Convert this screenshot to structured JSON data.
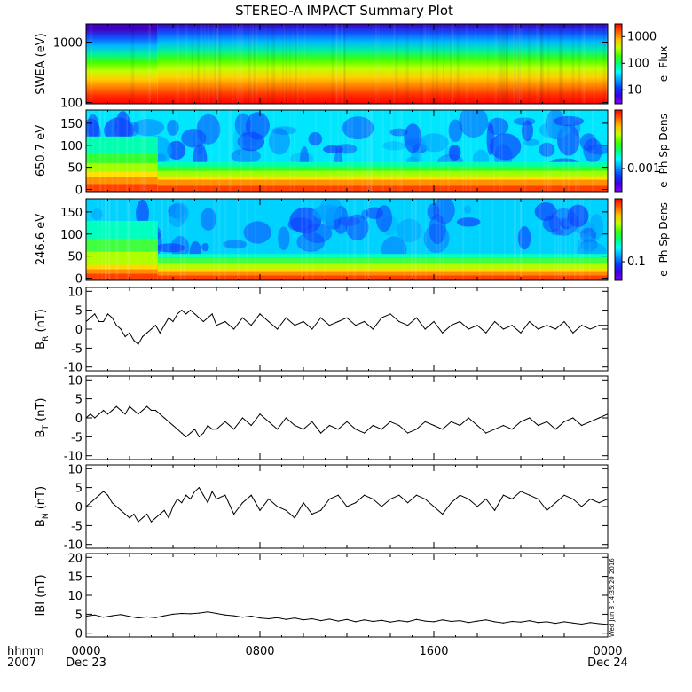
{
  "title": "STEREO-A IMPACT Summary Plot",
  "stamp": "Wed Jun  8 14:35:20 2016",
  "time_axis": {
    "row1_label": "hhmm",
    "row2_label": "2007",
    "ticks": [
      {
        "hours": 0,
        "label": "0000",
        "sublabel": "Dec 23"
      },
      {
        "hours": 8,
        "label": "0800",
        "sublabel": ""
      },
      {
        "hours": 16,
        "label": "1600",
        "sublabel": ""
      },
      {
        "hours": 24,
        "label": "0000",
        "sublabel": "Dec 24"
      }
    ],
    "range_hours": [
      0,
      24
    ]
  },
  "chart_data": [
    {
      "type": "heatmap",
      "ylabel": "SWEA (eV)",
      "yscale": "log",
      "ylim": [
        95,
        2000
      ],
      "yticks": [
        {
          "value": 100,
          "label": "100"
        },
        {
          "value": 1000,
          "label": "1000"
        }
      ],
      "colorbar": {
        "label": "e- Flux",
        "scale": "log",
        "range": [
          3,
          3000
        ],
        "ticks": [
          {
            "value": 10,
            "label": "10"
          },
          {
            "value": 100,
            "label": "100"
          },
          {
            "value": 1000,
            "label": "1000"
          }
        ]
      },
      "gradient_top_to_bottom": [
        "#4000c0",
        "#1050ff",
        "#00b8ff",
        "#00f0a0",
        "#40ff00",
        "#c0ff00",
        "#ffd000",
        "#ff8000",
        "#ff3000",
        "#ff0000"
      ],
      "change_hours": 3.3
    },
    {
      "type": "heatmap",
      "ylabel": "650.7 eV",
      "ylim": [
        -5,
        180
      ],
      "yticks": [
        {
          "value": 0,
          "label": "0"
        },
        {
          "value": 50,
          "label": "50"
        },
        {
          "value": 100,
          "label": "100"
        },
        {
          "value": 150,
          "label": "150"
        }
      ],
      "colorbar": {
        "label": "e- Ph Sp Dens",
        "scale": "log",
        "ticks": [
          {
            "value": 0.001,
            "label": "0.001"
          }
        ]
      },
      "base_color": "#00e6ff",
      "band_colors": [
        "#ff4000",
        "#ff9000",
        "#ffe000",
        "#a0ff00",
        "#30ff30",
        "#00ffb0",
        "#00e6ff"
      ],
      "band_tops": [
        8,
        22,
        30,
        42,
        52,
        62,
        180
      ],
      "early_band_tops": [
        12,
        28,
        40,
        60,
        80,
        120,
        180
      ],
      "change_hours": 3.3
    },
    {
      "type": "heatmap",
      "ylabel": "246.6 eV",
      "ylim": [
        -5,
        180
      ],
      "yticks": [
        {
          "value": 0,
          "label": "0"
        },
        {
          "value": 50,
          "label": "50"
        },
        {
          "value": 100,
          "label": "100"
        },
        {
          "value": 150,
          "label": "150"
        }
      ],
      "colorbar": {
        "label": "e- Ph Sp Dens",
        "scale": "log",
        "ticks": [
          {
            "value": 0.1,
            "label": "0.1"
          }
        ]
      },
      "base_color": "#00d2ff",
      "band_colors": [
        "#ff4000",
        "#ff8c00",
        "#ffd800",
        "#b0ff00",
        "#40ff40",
        "#00ffc0",
        "#00d2ff"
      ],
      "band_tops": [
        6,
        14,
        22,
        35,
        45,
        55,
        180
      ],
      "early_band_tops": [
        10,
        20,
        30,
        60,
        90,
        130,
        180
      ],
      "change_hours": 3.3
    },
    {
      "type": "line",
      "ylabel": "BR (nT)",
      "ylabel_main": "B",
      "ylabel_sub": "R",
      "ylabel_unit": " (nT)",
      "ylim": [
        -11,
        11
      ],
      "yticks": [
        {
          "value": -10,
          "label": "-10"
        },
        {
          "value": -5,
          "label": "-5"
        },
        {
          "value": 0,
          "label": "0"
        },
        {
          "value": 5,
          "label": "5"
        },
        {
          "value": 10,
          "label": "10"
        }
      ],
      "x": [
        0,
        0.2,
        0.4,
        0.6,
        0.8,
        1.0,
        1.2,
        1.4,
        1.6,
        1.8,
        2.0,
        2.2,
        2.4,
        2.6,
        2.8,
        3.0,
        3.2,
        3.4,
        3.6,
        3.8,
        4.0,
        4.2,
        4.4,
        4.6,
        4.8,
        5.0,
        5.2,
        5.4,
        5.6,
        5.8,
        6.0,
        6.4,
        6.8,
        7.2,
        7.6,
        8.0,
        8.4,
        8.8,
        9.2,
        9.6,
        10.0,
        10.4,
        10.8,
        11.2,
        11.6,
        12.0,
        12.4,
        12.8,
        13.2,
        13.6,
        14.0,
        14.4,
        14.8,
        15.2,
        15.6,
        16.0,
        16.4,
        16.8,
        17.2,
        17.6,
        18.0,
        18.4,
        18.8,
        19.2,
        19.6,
        20.0,
        20.4,
        20.8,
        21.2,
        21.6,
        22.0,
        22.4,
        22.8,
        23.2,
        23.6,
        24.0
      ],
      "values": [
        2,
        3,
        4,
        2,
        2,
        4,
        3,
        1,
        0,
        -2,
        -1,
        -3,
        -4,
        -2,
        -1,
        0,
        1,
        -1,
        1,
        3,
        2,
        4,
        5,
        4,
        5,
        4,
        3,
        2,
        3,
        4,
        1,
        2,
        0,
        3,
        1,
        4,
        2,
        0,
        3,
        1,
        2,
        0,
        3,
        1,
        2,
        3,
        1,
        2,
        0,
        3,
        4,
        2,
        1,
        3,
        0,
        2,
        -1,
        1,
        2,
        0,
        1,
        -1,
        2,
        0,
        1,
        -1,
        2,
        0,
        1,
        0,
        2,
        -1,
        1,
        0,
        1,
        1
      ]
    },
    {
      "type": "line",
      "ylabel": "BT (nT)",
      "ylabel_main": "B",
      "ylabel_sub": "T",
      "ylabel_unit": " (nT)",
      "ylim": [
        -11,
        11
      ],
      "yticks": [
        {
          "value": -10,
          "label": "-10"
        },
        {
          "value": -5,
          "label": "-5"
        },
        {
          "value": 0,
          "label": "0"
        },
        {
          "value": 5,
          "label": "5"
        },
        {
          "value": 10,
          "label": "10"
        }
      ],
      "x": [
        0,
        0.2,
        0.4,
        0.6,
        0.8,
        1.0,
        1.2,
        1.4,
        1.6,
        1.8,
        2.0,
        2.2,
        2.4,
        2.6,
        2.8,
        3.0,
        3.2,
        3.4,
        3.6,
        3.8,
        4.0,
        4.2,
        4.4,
        4.6,
        4.8,
        5.0,
        5.2,
        5.4,
        5.6,
        5.8,
        6.0,
        6.4,
        6.8,
        7.2,
        7.6,
        8.0,
        8.4,
        8.8,
        9.2,
        9.6,
        10.0,
        10.4,
        10.8,
        11.2,
        11.6,
        12.0,
        12.4,
        12.8,
        13.2,
        13.6,
        14.0,
        14.4,
        14.8,
        15.2,
        15.6,
        16.0,
        16.4,
        16.8,
        17.2,
        17.6,
        18.0,
        18.4,
        18.8,
        19.2,
        19.6,
        20.0,
        20.4,
        20.8,
        21.2,
        21.6,
        22.0,
        22.4,
        22.8,
        23.2,
        23.6,
        24.0
      ],
      "values": [
        0,
        1,
        0,
        1,
        2,
        1,
        2,
        3,
        2,
        1,
        3,
        2,
        1,
        2,
        3,
        2,
        2,
        1,
        0,
        -1,
        -2,
        -3,
        -4,
        -5,
        -4,
        -3,
        -5,
        -4,
        -2,
        -3,
        -3,
        -1,
        -3,
        0,
        -2,
        1,
        -1,
        -3,
        0,
        -2,
        -3,
        -1,
        -4,
        -2,
        -3,
        -1,
        -3,
        -4,
        -2,
        -3,
        -1,
        -2,
        -4,
        -3,
        -1,
        -2,
        -3,
        -1,
        -2,
        0,
        -2,
        -4,
        -3,
        -2,
        -3,
        -1,
        0,
        -2,
        -1,
        -3,
        -1,
        0,
        -2,
        -1,
        0,
        1
      ]
    },
    {
      "type": "line",
      "ylabel": "BN (nT)",
      "ylabel_main": "B",
      "ylabel_sub": "N",
      "ylabel_unit": " (nT)",
      "ylim": [
        -11,
        11
      ],
      "yticks": [
        {
          "value": -10,
          "label": "-10"
        },
        {
          "value": -5,
          "label": "-5"
        },
        {
          "value": 0,
          "label": "0"
        },
        {
          "value": 5,
          "label": "5"
        },
        {
          "value": 10,
          "label": "10"
        }
      ],
      "x": [
        0,
        0.2,
        0.4,
        0.6,
        0.8,
        1.0,
        1.2,
        1.4,
        1.6,
        1.8,
        2.0,
        2.2,
        2.4,
        2.6,
        2.8,
        3.0,
        3.2,
        3.4,
        3.6,
        3.8,
        4.0,
        4.2,
        4.4,
        4.6,
        4.8,
        5.0,
        5.2,
        5.4,
        5.6,
        5.8,
        6.0,
        6.4,
        6.8,
        7.2,
        7.6,
        8.0,
        8.4,
        8.8,
        9.2,
        9.6,
        10.0,
        10.4,
        10.8,
        11.2,
        11.6,
        12.0,
        12.4,
        12.8,
        13.2,
        13.6,
        14.0,
        14.4,
        14.8,
        15.2,
        15.6,
        16.0,
        16.4,
        16.8,
        17.2,
        17.6,
        18.0,
        18.4,
        18.8,
        19.2,
        19.6,
        20.0,
        20.4,
        20.8,
        21.2,
        21.6,
        22.0,
        22.4,
        22.8,
        23.2,
        23.6,
        24.0
      ],
      "values": [
        0,
        1,
        2,
        3,
        4,
        3,
        1,
        0,
        -1,
        -2,
        -3,
        -2,
        -4,
        -3,
        -2,
        -4,
        -3,
        -2,
        -1,
        -3,
        0,
        2,
        1,
        3,
        2,
        4,
        5,
        3,
        1,
        4,
        2,
        3,
        -2,
        1,
        3,
        -1,
        2,
        0,
        -1,
        -3,
        1,
        -2,
        -1,
        2,
        3,
        0,
        1,
        3,
        2,
        0,
        2,
        3,
        1,
        3,
        2,
        0,
        -2,
        1,
        3,
        2,
        0,
        2,
        -1,
        3,
        2,
        4,
        3,
        2,
        -1,
        1,
        3,
        2,
        0,
        2,
        1,
        2
      ]
    },
    {
      "type": "line",
      "ylabel": "|B| (nT)",
      "ylabel_main": "IBI",
      "ylabel_sub": "",
      "ylabel_unit": " (nT)",
      "ylim": [
        -1,
        21
      ],
      "yticks": [
        {
          "value": 0,
          "label": "0"
        },
        {
          "value": 5,
          "label": "5"
        },
        {
          "value": 10,
          "label": "10"
        },
        {
          "value": 15,
          "label": "15"
        },
        {
          "value": 20,
          "label": "20"
        }
      ],
      "x": [
        0,
        0.4,
        0.8,
        1.2,
        1.6,
        2.0,
        2.4,
        2.8,
        3.2,
        3.6,
        4.0,
        4.4,
        4.8,
        5.2,
        5.6,
        6.0,
        6.4,
        6.8,
        7.2,
        7.6,
        8.0,
        8.4,
        8.8,
        9.2,
        9.6,
        10.0,
        10.4,
        10.8,
        11.2,
        11.6,
        12.0,
        12.4,
        12.8,
        13.2,
        13.6,
        14.0,
        14.4,
        14.8,
        15.2,
        15.6,
        16.0,
        16.4,
        16.8,
        17.2,
        17.6,
        18.0,
        18.4,
        18.8,
        19.2,
        19.6,
        20.0,
        20.4,
        20.8,
        21.2,
        21.6,
        22.0,
        22.4,
        22.8,
        23.2,
        23.6,
        24.0
      ],
      "values": [
        4.5,
        4.8,
        4.2,
        4.6,
        4.9,
        4.4,
        4.0,
        4.3,
        4.1,
        4.6,
        5.0,
        5.2,
        5.1,
        5.3,
        5.6,
        5.2,
        4.8,
        4.6,
        4.2,
        4.5,
        4.0,
        3.8,
        4.1,
        3.6,
        4.0,
        3.5,
        3.8,
        3.3,
        3.7,
        3.2,
        3.6,
        3.0,
        3.5,
        3.1,
        3.4,
        2.9,
        3.3,
        3.0,
        3.6,
        3.2,
        3.0,
        3.5,
        3.1,
        3.3,
        2.8,
        3.2,
        3.5,
        3.0,
        2.7,
        3.1,
        2.9,
        3.3,
        2.8,
        3.0,
        2.6,
        3.0,
        2.7,
        2.4,
        2.8,
        2.5,
        2.3
      ]
    }
  ]
}
